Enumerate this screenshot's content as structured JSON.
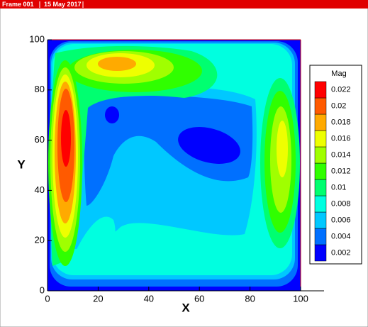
{
  "header": {
    "frame": "Frame 001",
    "date": "15 May 2017"
  },
  "chart_data": {
    "type": "contour",
    "xlabel": "X",
    "ylabel": "Y",
    "xlim": [
      0,
      100
    ],
    "ylim": [
      0,
      100
    ],
    "xticks": [
      0,
      20,
      40,
      60,
      80,
      100
    ],
    "yticks": [
      0,
      20,
      40,
      60,
      80,
      100
    ],
    "legend": {
      "title": "Mag",
      "levels": [
        0.002,
        0.004,
        0.006,
        0.008,
        0.01,
        0.012,
        0.014,
        0.016,
        0.018,
        0.02,
        0.022
      ],
      "colors": [
        "#0000ff",
        "#0070ff",
        "#00c8ff",
        "#00ffe0",
        "#00ff70",
        "#30ff00",
        "#a0ff00",
        "#eeff00",
        "#ffaa00",
        "#ff5a00",
        "#ff0000"
      ]
    }
  }
}
